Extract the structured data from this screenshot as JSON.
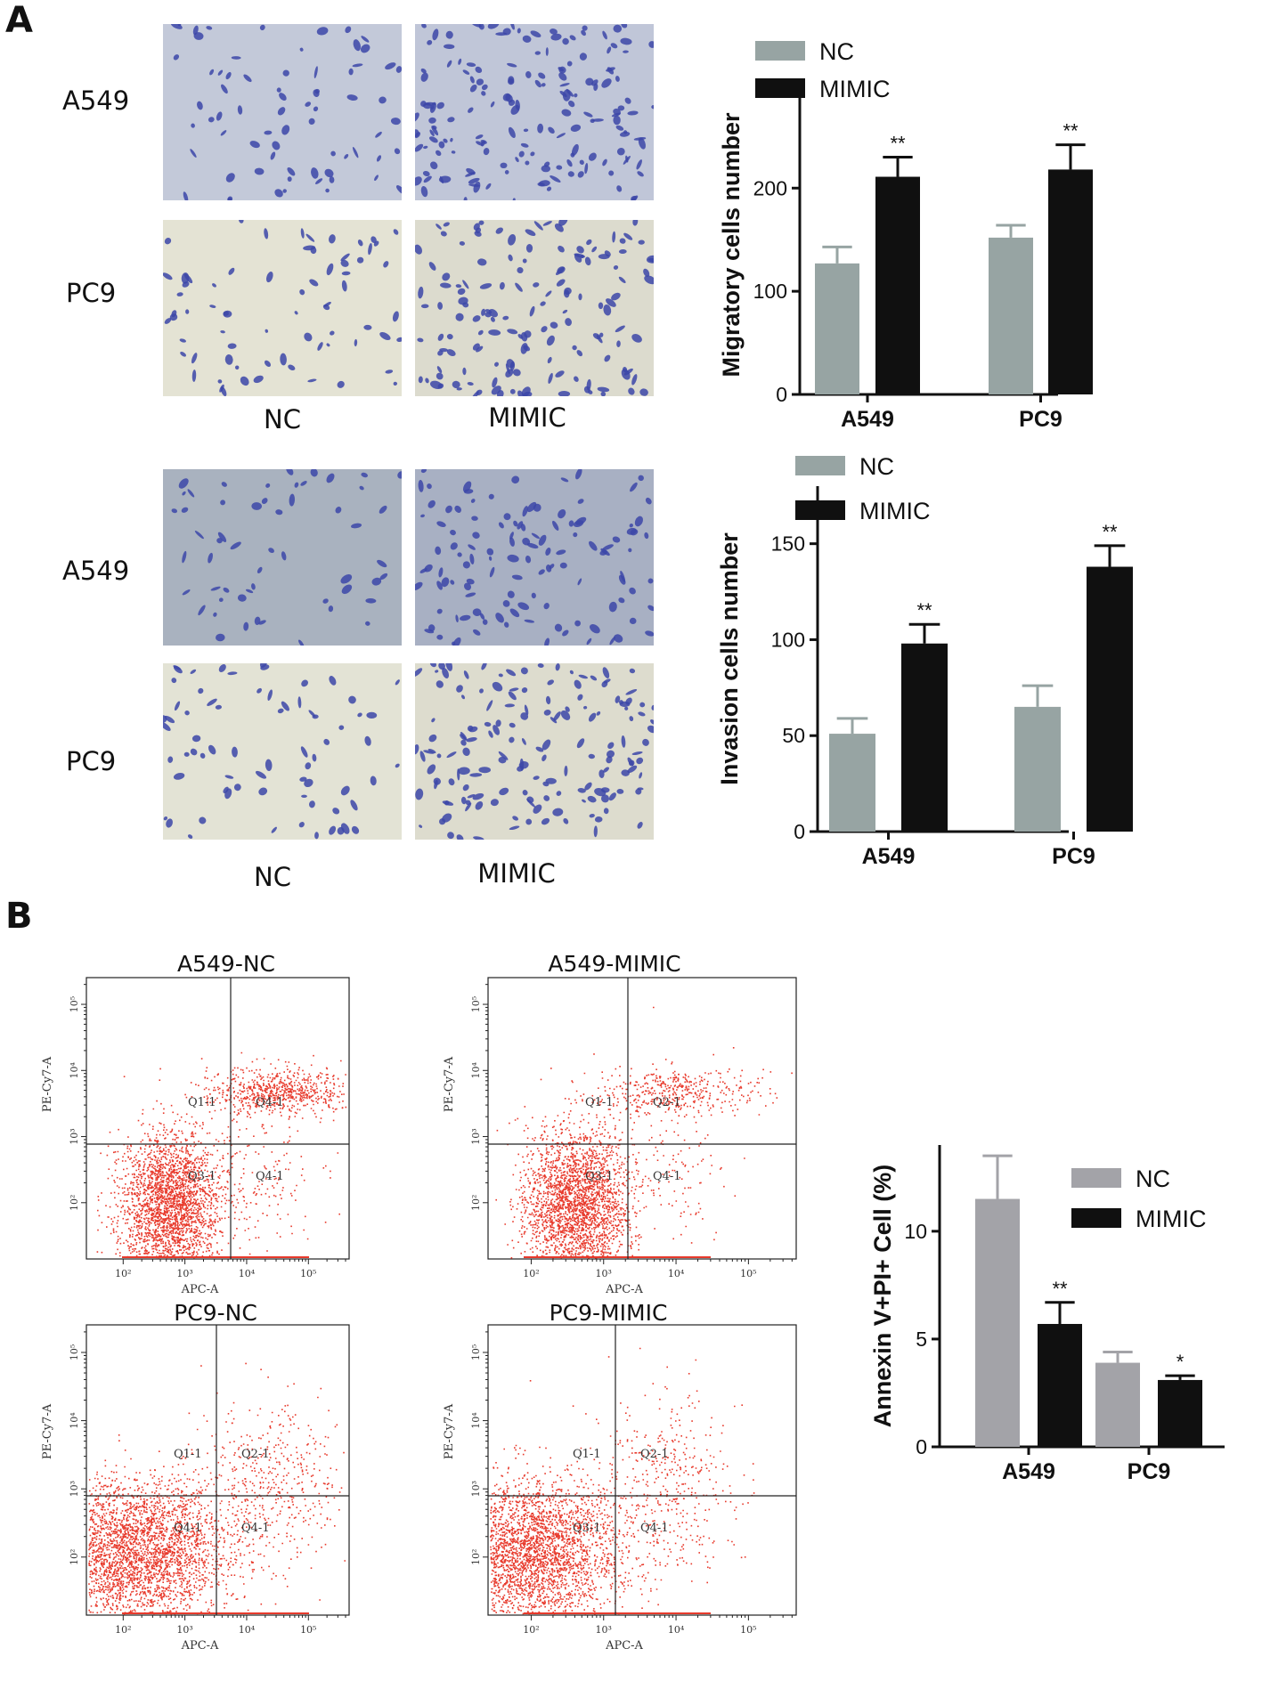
{
  "figure": {
    "panel_a_label": "A",
    "panel_b_label": "B",
    "migration": {
      "row_labels": [
        "A549",
        "PC9"
      ],
      "col_labels": [
        "NC",
        "MIMIC"
      ]
    },
    "invasion": {
      "row_labels": [
        "A549",
        "PC9"
      ],
      "col_labels": [
        "NC",
        "MIMIC"
      ]
    },
    "flow": {
      "panels": [
        {
          "title": "A549-NC",
          "q1": "Q1-1",
          "q2": "Q4-1",
          "q3": "Q3-1",
          "q4": "Q4-1",
          "xlabel": "APC-A",
          "ylabel": "PE-Cy7-A"
        },
        {
          "title": "A549-MIMIC",
          "q1": "Q1-1",
          "q2": "Q2-1",
          "q3": "Q3-1",
          "q4": "Q4-1",
          "xlabel": "APC-A",
          "ylabel": "PE-Cy7-A"
        },
        {
          "title": "PC9-NC",
          "q1": "Q1-1",
          "q2": "Q2-1",
          "q3": "Q4-1",
          "q4": "Q4-1",
          "xlabel": "APC-A",
          "ylabel": "PE-Cy7-A"
        },
        {
          "title": "PC9-MIMIC",
          "q1": "Q1-1",
          "q2": "Q2-1",
          "q3": "Q3-1",
          "q4": "Q4-1",
          "xlabel": "APC-A",
          "ylabel": "PE-Cy7-A"
        }
      ],
      "x_ticks": [
        "10²",
        "10³",
        "10⁴",
        "10⁵"
      ],
      "y_ticks": [
        "10²",
        "10³",
        "10⁴",
        "10⁵"
      ]
    },
    "colors": {
      "nc": "#97a4a3",
      "mimic": "#101010",
      "nc_b": "#a3a3a8",
      "stain": "#3c46a8",
      "dots": "#e83a2c"
    }
  },
  "chart_data": [
    {
      "type": "bar",
      "title": "",
      "xlabel": "",
      "ylabel": "Migratory cells number",
      "categories": [
        "A549",
        "PC9"
      ],
      "series": [
        {
          "name": "NC",
          "values": [
            127,
            152
          ],
          "errors": [
            16,
            12
          ]
        },
        {
          "name": "MIMIC",
          "values": [
            211,
            218
          ],
          "errors": [
            19,
            24
          ]
        }
      ],
      "significance": [
        [
          "",
          "**"
        ],
        [
          "",
          "**"
        ]
      ],
      "ylim": [
        0,
        290
      ],
      "yticks": [
        0,
        100,
        200
      ],
      "legend": "top-left"
    },
    {
      "type": "bar",
      "title": "",
      "xlabel": "",
      "ylabel": "Invasion cells number",
      "categories": [
        "A549",
        "PC9"
      ],
      "series": [
        {
          "name": "NC",
          "values": [
            51,
            65
          ],
          "errors": [
            8,
            11
          ]
        },
        {
          "name": "MIMIC",
          "values": [
            98,
            138
          ],
          "errors": [
            10,
            11
          ]
        }
      ],
      "significance": [
        [
          "",
          "**"
        ],
        [
          "",
          "**"
        ]
      ],
      "ylim": [
        0,
        180
      ],
      "yticks": [
        0,
        50,
        100,
        150
      ],
      "legend": "top-left"
    },
    {
      "type": "bar",
      "title": "",
      "xlabel": "",
      "ylabel": "Annexin V+PI+ Cell (%)",
      "categories": [
        "A549",
        "PC9"
      ],
      "series": [
        {
          "name": "NC",
          "values": [
            11.5,
            3.9
          ],
          "errors": [
            2.0,
            0.5
          ]
        },
        {
          "name": "MIMIC",
          "values": [
            5.7,
            3.1
          ],
          "errors": [
            1.0,
            0.2
          ]
        }
      ],
      "significance": [
        [
          "",
          "**"
        ],
        [
          "",
          "*"
        ]
      ],
      "ylim": [
        0,
        14
      ],
      "yticks": [
        0,
        5,
        10
      ],
      "legend": "top-right"
    }
  ]
}
